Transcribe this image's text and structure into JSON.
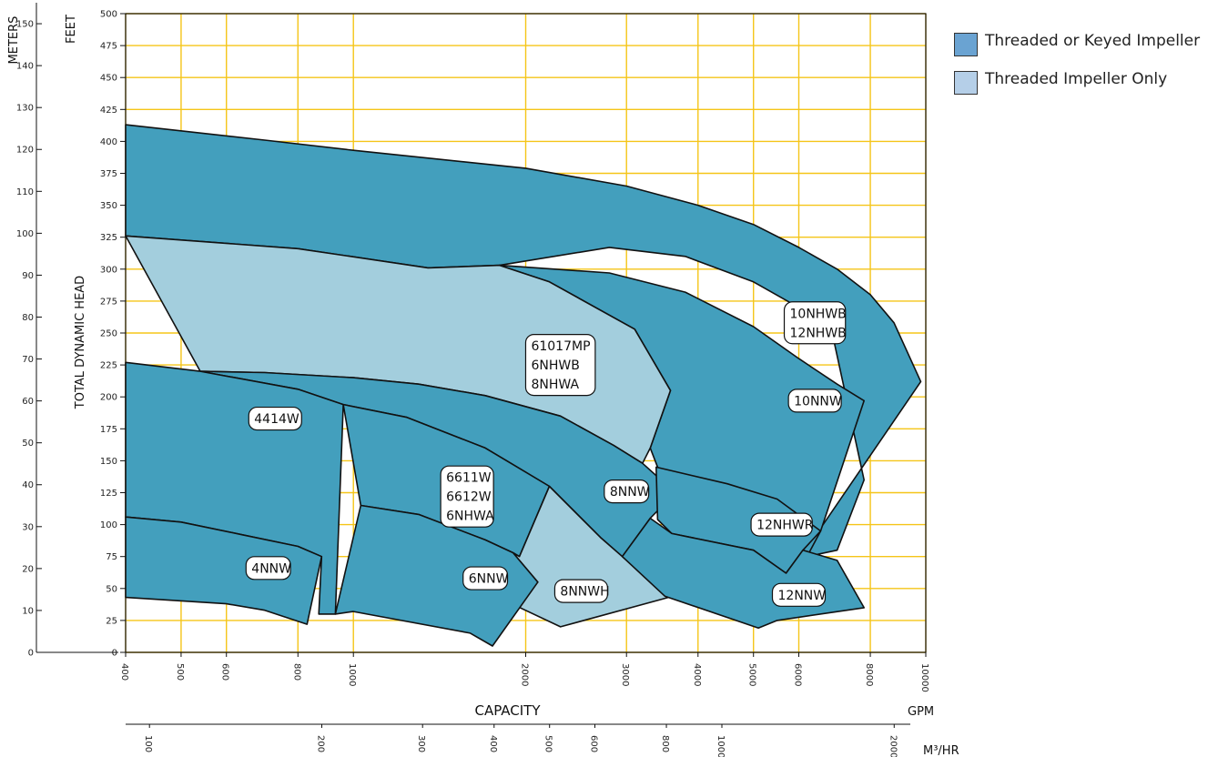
{
  "chart_data": {
    "type": "area",
    "xlabel": "CAPACITY",
    "x_unit": "GPM",
    "x_scale": "log",
    "xlim": [
      400,
      10000
    ],
    "x_ticks": [
      "400",
      "500",
      "600",
      "800",
      "1000",
      "2000",
      "3000",
      "4000",
      "5000",
      "6000",
      "8000",
      "10000"
    ],
    "x2_unit": "M³/HR",
    "x2_ticks": [
      "100",
      "200",
      "300",
      "400",
      "500",
      "600",
      "800",
      "1000",
      "2000"
    ],
    "ylabel": "TOTAL DYNAMIC HEAD",
    "y_unit": "FEET",
    "ylim": [
      0,
      500
    ],
    "y_ticks": [
      "0",
      "25",
      "50",
      "75",
      "100",
      "125",
      "150",
      "175",
      "200",
      "225",
      "250",
      "275",
      "300",
      "325",
      "350",
      "375",
      "400",
      "425",
      "450",
      "475",
      "500"
    ],
    "y2_unit": "METERS",
    "y2_ticks": [
      "0",
      "10",
      "20",
      "30",
      "40",
      "50",
      "60",
      "70",
      "80",
      "90",
      "100",
      "110",
      "120",
      "130",
      "140",
      "150"
    ],
    "grid": true,
    "legend_position": "top-right",
    "legend": [
      {
        "label": "Threaded or Keyed Impeller",
        "color": "#6aa3d2"
      },
      {
        "label": "Threaded Impeller Only",
        "color": "#b5cfe8"
      }
    ],
    "colors": {
      "keyed": "#439fbd",
      "threaded_only": "#a3cedd",
      "grid": "#f5c518"
    },
    "regions": [
      {
        "id": "r-10nhwb",
        "label": [
          "10NHWB",
          "12NHWB"
        ],
        "label_at": [
          6400,
          258
        ],
        "type": "keyed",
        "points": [
          [
            400,
            413
          ],
          [
            700,
            401
          ],
          [
            1000,
            393
          ],
          [
            2000,
            379
          ],
          [
            3000,
            365
          ],
          [
            4000,
            350
          ],
          [
            5000,
            335
          ],
          [
            6000,
            317
          ],
          [
            7000,
            300
          ],
          [
            8000,
            280
          ],
          [
            8800,
            258
          ],
          [
            9800,
            212
          ],
          [
            6500,
            95
          ],
          [
            6200,
            75
          ],
          [
            7000,
            80
          ],
          [
            7800,
            135
          ],
          [
            6900,
            245
          ],
          [
            6000,
            270
          ],
          [
            5000,
            290
          ],
          [
            3800,
            310
          ],
          [
            2800,
            317
          ],
          [
            1800,
            303
          ],
          [
            1350,
            301
          ],
          [
            800,
            316
          ],
          [
            400,
            326
          ]
        ]
      },
      {
        "id": "r-10nnw",
        "label": [
          "10NNW"
        ],
        "label_at": [
          6400,
          197
        ],
        "type": "keyed",
        "points": [
          [
            1800,
            303
          ],
          [
            2800,
            297
          ],
          [
            3800,
            282
          ],
          [
            5000,
            255
          ],
          [
            6000,
            230
          ],
          [
            7000,
            210
          ],
          [
            7800,
            197
          ],
          [
            6550,
            95
          ],
          [
            6200,
            75
          ],
          [
            5500,
            90
          ],
          [
            4500,
            110
          ],
          [
            3400,
            145
          ],
          [
            3300,
            160
          ],
          [
            3580,
            205
          ],
          [
            3100,
            253
          ],
          [
            2200,
            290
          ]
        ]
      },
      {
        "id": "r-61017mp",
        "label": [
          "61017MP",
          "6NHWB",
          "8NHWA"
        ],
        "label_at": [
          2300,
          225
        ],
        "type": "threaded",
        "points": [
          [
            400,
            326
          ],
          [
            800,
            316
          ],
          [
            1350,
            301
          ],
          [
            1800,
            303
          ],
          [
            2200,
            290
          ],
          [
            3100,
            253
          ],
          [
            3580,
            205
          ],
          [
            3300,
            160
          ],
          [
            3200,
            148
          ],
          [
            2850,
            162
          ],
          [
            2300,
            185
          ],
          [
            1700,
            201
          ],
          [
            1300,
            210
          ],
          [
            1000,
            215
          ],
          [
            700,
            219
          ],
          [
            540,
            220
          ]
        ]
      },
      {
        "id": "r-8nnw",
        "label": [
          "8NNW"
        ],
        "label_at": [
          3000,
          126
        ],
        "type": "keyed",
        "points": [
          [
            540,
            220
          ],
          [
            700,
            219
          ],
          [
            1000,
            215
          ],
          [
            1300,
            210
          ],
          [
            1700,
            201
          ],
          [
            2300,
            185
          ],
          [
            2850,
            162
          ],
          [
            3200,
            148
          ],
          [
            3650,
            125
          ],
          [
            3300,
            105
          ],
          [
            2950,
            75
          ],
          [
            2700,
            90
          ],
          [
            2200,
            130
          ],
          [
            1700,
            160
          ],
          [
            1240,
            184
          ],
          [
            960,
            194
          ],
          [
            800,
            206
          ]
        ]
      },
      {
        "id": "r-4414w",
        "label": [
          "4414W"
        ],
        "label_at": [
          730,
          183
        ],
        "type": "keyed",
        "points": [
          [
            400,
            227
          ],
          [
            540,
            220
          ],
          [
            800,
            206
          ],
          [
            960,
            194
          ],
          [
            930,
            30
          ],
          [
            870,
            30
          ],
          [
            880,
            75
          ],
          [
            800,
            83
          ],
          [
            640,
            92
          ],
          [
            500,
            102
          ],
          [
            400,
            106
          ]
        ]
      },
      {
        "id": "r-6611w",
        "label": [
          "6611W",
          "6612W",
          "6NHWA"
        ],
        "label_at": [
          1580,
          122
        ],
        "type": "keyed",
        "points": [
          [
            960,
            194
          ],
          [
            1240,
            184
          ],
          [
            1700,
            160
          ],
          [
            2200,
            130
          ],
          [
            1950,
            75
          ],
          [
            1900,
            78
          ],
          [
            1700,
            88
          ],
          [
            1300,
            108
          ],
          [
            1030,
            115
          ]
        ]
      },
      {
        "id": "r-8nnwh",
        "label": [
          "8NNWH"
        ],
        "label_at": [
          2500,
          48
        ],
        "type": "threaded",
        "points": [
          [
            2200,
            130
          ],
          [
            2700,
            90
          ],
          [
            2950,
            75
          ],
          [
            3550,
            43
          ],
          [
            2300,
            20
          ],
          [
            1850,
            40
          ],
          [
            2100,
            55
          ],
          [
            1900,
            78
          ],
          [
            1950,
            75
          ]
        ]
      },
      {
        "id": "r-12nhwr",
        "label": [
          "12NHWR"
        ],
        "label_at": [
          5600,
          100
        ],
        "type": "keyed",
        "points": [
          [
            3380,
            145
          ],
          [
            4500,
            132
          ],
          [
            5500,
            120
          ],
          [
            6550,
            95
          ],
          [
            6100,
            80
          ],
          [
            5700,
            62
          ],
          [
            5000,
            80
          ],
          [
            3600,
            93
          ],
          [
            3400,
            104
          ]
        ]
      },
      {
        "id": "r-12nnw",
        "label": [
          "12NNW"
        ],
        "label_at": [
          6000,
          45
        ],
        "type": "keyed",
        "points": [
          [
            3600,
            93
          ],
          [
            5000,
            80
          ],
          [
            5700,
            62
          ],
          [
            6100,
            80
          ],
          [
            7000,
            72
          ],
          [
            7800,
            35
          ],
          [
            5500,
            25
          ],
          [
            5100,
            19
          ],
          [
            3500,
            44
          ],
          [
            2950,
            75
          ],
          [
            3300,
            105
          ]
        ]
      },
      {
        "id": "r-6nnw",
        "label": [
          "6NNW"
        ],
        "label_at": [
          1700,
          58
        ],
        "type": "keyed",
        "points": [
          [
            1030,
            115
          ],
          [
            1300,
            108
          ],
          [
            1700,
            88
          ],
          [
            1900,
            78
          ],
          [
            2100,
            55
          ],
          [
            1750,
            5
          ],
          [
            1600,
            15
          ],
          [
            1000,
            32
          ],
          [
            930,
            30
          ]
        ]
      },
      {
        "id": "r-4nnw",
        "label": [
          "4NNW"
        ],
        "label_at": [
          710,
          66
        ],
        "type": "keyed",
        "points": [
          [
            400,
            106
          ],
          [
            500,
            102
          ],
          [
            640,
            92
          ],
          [
            800,
            83
          ],
          [
            880,
            75
          ],
          [
            830,
            22
          ],
          [
            700,
            33
          ],
          [
            600,
            38
          ],
          [
            400,
            43
          ]
        ]
      }
    ]
  }
}
